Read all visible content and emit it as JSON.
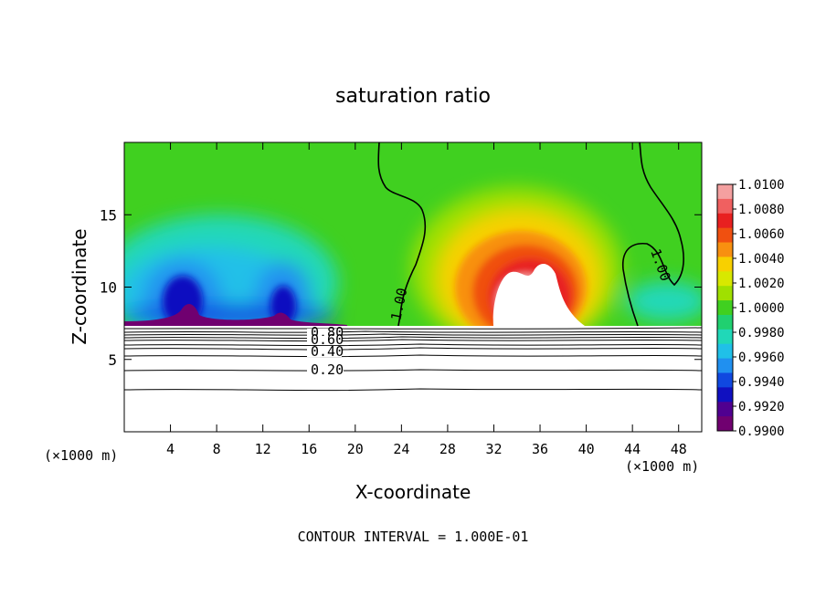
{
  "chart_data": {
    "type": "heatmap",
    "title": "saturation ratio",
    "xlabel": "X-coordinate",
    "ylabel": "Z-coordinate",
    "x_unit": "(×1000 m)",
    "footer": "CONTOUR INTERVAL = 1.000E-01",
    "xlim": [
      0,
      50
    ],
    "ylim": [
      0,
      20
    ],
    "x_ticks": [
      4,
      8,
      12,
      16,
      20,
      24,
      28,
      32,
      36,
      40,
      44,
      48
    ],
    "y_ticks": [
      5,
      10,
      15
    ],
    "colorbar": {
      "min": 0.99,
      "max": 1.01,
      "labels": [
        "1.0100",
        "1.0080",
        "1.0060",
        "1.0040",
        "1.0020",
        "1.0000",
        "0.9980",
        "0.9960",
        "0.9940",
        "0.9920",
        "0.9900"
      ],
      "colors": [
        "#f4a0a0",
        "#f06060",
        "#e82020",
        "#f05010",
        "#f89010",
        "#f8d000",
        "#d8e800",
        "#a0e000",
        "#40d020",
        "#20d070",
        "#20d8b8",
        "#20c0e8",
        "#2090f0",
        "#1048e0",
        "#1010c0",
        "#500090",
        "#700070"
      ]
    },
    "contour_labels": [
      "0.80",
      "0.60",
      "0.40",
      "0.20",
      "1.00",
      "1.00"
    ],
    "contour_levels": [
      0.2,
      0.4,
      0.6,
      0.8,
      1.0
    ],
    "field_features": [
      {
        "kind": "supersaturated dome",
        "x_center": 34,
        "x_extent": [
          24,
          43
        ],
        "z_top": 15.5,
        "max_ratio": 1.01
      },
      {
        "kind": "subsaturated region",
        "x_extent": [
          0,
          16
        ],
        "z_range": [
          7.3,
          13
        ],
        "min_ratio": 0.99
      },
      {
        "kind": "surface limit of shaded field",
        "z": 7.3
      }
    ]
  }
}
